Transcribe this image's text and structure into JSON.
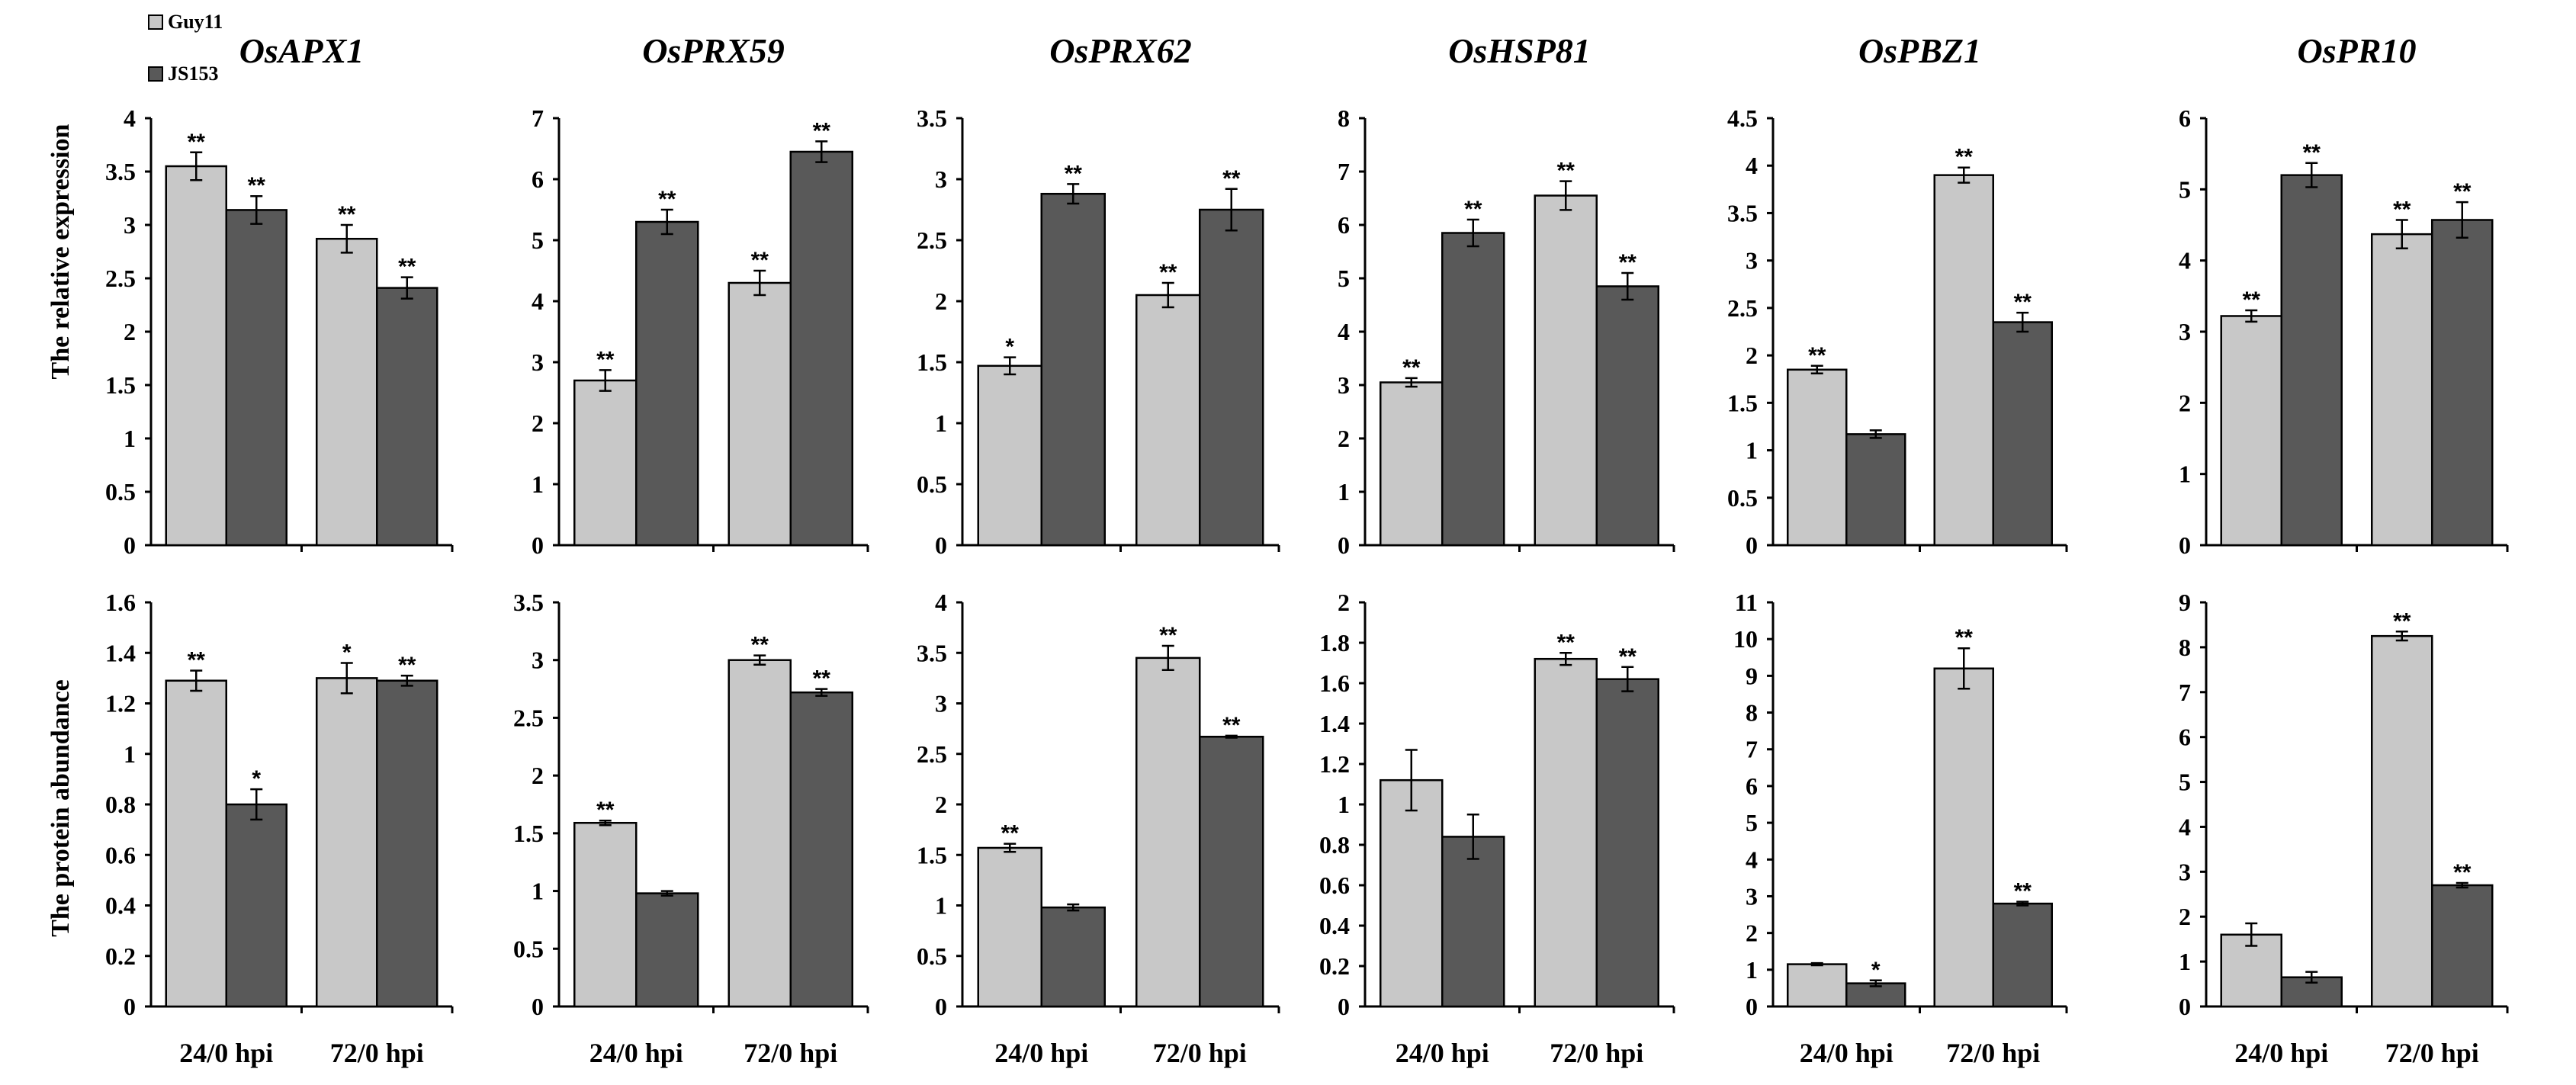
{
  "legend": {
    "items": [
      {
        "label": "Guy11",
        "color": "#c8c8c8"
      },
      {
        "label": "JS153",
        "color": "#595959"
      }
    ]
  },
  "row_labels": {
    "top": "The relative expression",
    "bottom": "The protein  abundance"
  },
  "chart_data": [
    {
      "type": "bar",
      "title": "OsAPX1",
      "ylabel": "The relative expression",
      "categories": [
        "24/0 hpi",
        "72/0 hpi"
      ],
      "ylim": [
        0,
        4
      ],
      "ytick_labels": [
        "0",
        "0.5",
        "1",
        "1.5",
        "2",
        "2.5",
        "3",
        "3.5",
        "4"
      ],
      "series": [
        {
          "name": "Guy11",
          "values": [
            3.55,
            2.87
          ],
          "errors": [
            0.13,
            0.13
          ],
          "marks": [
            "**",
            "**"
          ]
        },
        {
          "name": "JS153",
          "values": [
            3.14,
            2.41
          ],
          "errors": [
            0.13,
            0.1
          ],
          "marks": [
            "**",
            "**"
          ]
        }
      ]
    },
    {
      "type": "bar",
      "title": "OsPRX59",
      "ylabel": "",
      "categories": [
        "24/0 hpi",
        "72/0 hpi"
      ],
      "ylim": [
        0,
        7
      ],
      "ytick_labels": [
        "0",
        "1",
        "2",
        "3",
        "4",
        "5",
        "6",
        "7"
      ],
      "series": [
        {
          "name": "Guy11",
          "values": [
            2.7,
            4.3
          ],
          "errors": [
            0.17,
            0.2
          ],
          "marks": [
            "**",
            "**"
          ]
        },
        {
          "name": "JS153",
          "values": [
            5.3,
            6.45
          ],
          "errors": [
            0.2,
            0.17
          ],
          "marks": [
            "**",
            "**"
          ]
        }
      ]
    },
    {
      "type": "bar",
      "title": "OsPRX62",
      "ylabel": "",
      "categories": [
        "24/0 hpi",
        "72/0 hpi"
      ],
      "ylim": [
        0,
        3.5
      ],
      "ytick_labels": [
        "0",
        "0.5",
        "1",
        "1.5",
        "2",
        "2.5",
        "3",
        "3.5"
      ],
      "series": [
        {
          "name": "Guy11",
          "values": [
            1.47,
            2.05
          ],
          "errors": [
            0.07,
            0.1
          ],
          "marks": [
            "*",
            "**"
          ]
        },
        {
          "name": "JS153",
          "values": [
            2.88,
            2.75
          ],
          "errors": [
            0.08,
            0.17
          ],
          "marks": [
            "**",
            "**"
          ]
        }
      ]
    },
    {
      "type": "bar",
      "title": "OsHSP81",
      "ylabel": "",
      "categories": [
        "24/0 hpi",
        "72/0 hpi"
      ],
      "ylim": [
        0,
        8
      ],
      "ytick_labels": [
        "0",
        "1",
        "2",
        "3",
        "4",
        "5",
        "6",
        "7",
        "8"
      ],
      "series": [
        {
          "name": "Guy11",
          "values": [
            3.05,
            6.55
          ],
          "errors": [
            0.08,
            0.27
          ],
          "marks": [
            "**",
            "**"
          ]
        },
        {
          "name": "JS153",
          "values": [
            5.85,
            4.85
          ],
          "errors": [
            0.25,
            0.25
          ],
          "marks": [
            "**",
            "**"
          ]
        }
      ]
    },
    {
      "type": "bar",
      "title": "OsPBZ1",
      "ylabel": "",
      "categories": [
        "24/0 hpi",
        "72/0 hpi"
      ],
      "ylim": [
        0,
        4.5
      ],
      "ytick_labels": [
        "0",
        "0.5",
        "1",
        "1.5",
        "2",
        "2.5",
        "3",
        "3.5",
        "4",
        "4.5"
      ],
      "series": [
        {
          "name": "Guy11",
          "values": [
            1.85,
            3.9
          ],
          "errors": [
            0.04,
            0.08
          ],
          "marks": [
            "**",
            "**"
          ]
        },
        {
          "name": "JS153",
          "values": [
            1.17,
            2.35
          ],
          "errors": [
            0.04,
            0.1
          ],
          "marks": [
            "",
            "**"
          ]
        }
      ]
    },
    {
      "type": "bar",
      "title": "OsPR10",
      "ylabel": "",
      "categories": [
        "24/0 hpi",
        "72/0 hpi"
      ],
      "ylim": [
        0,
        6
      ],
      "ytick_labels": [
        "0",
        "1",
        "2",
        "3",
        "4",
        "5",
        "6"
      ],
      "series": [
        {
          "name": "Guy11",
          "values": [
            3.22,
            4.37
          ],
          "errors": [
            0.08,
            0.2
          ],
          "marks": [
            "**",
            "**"
          ]
        },
        {
          "name": "JS153",
          "values": [
            5.2,
            4.57
          ],
          "errors": [
            0.17,
            0.25
          ],
          "marks": [
            "**",
            "**"
          ]
        }
      ]
    },
    {
      "type": "bar",
      "title": "",
      "ylabel": "The protein  abundance",
      "categories": [
        "24/0 hpi",
        "72/0 hpi"
      ],
      "ylim": [
        0,
        1.6
      ],
      "ytick_labels": [
        "0",
        "0.2",
        "0.4",
        "0.6",
        "0.8",
        "1",
        "1.2",
        "1.4",
        "1.6"
      ],
      "series": [
        {
          "name": "Guy11",
          "values": [
            1.29,
            1.3
          ],
          "errors": [
            0.04,
            0.06
          ],
          "marks": [
            "**",
            "*"
          ]
        },
        {
          "name": "JS153",
          "values": [
            0.8,
            1.29
          ],
          "errors": [
            0.06,
            0.02
          ],
          "marks": [
            "*",
            "**"
          ]
        }
      ]
    },
    {
      "type": "bar",
      "title": "",
      "ylabel": "",
      "categories": [
        "24/0 hpi",
        "72/0 hpi"
      ],
      "ylim": [
        0,
        3.5
      ],
      "ytick_labels": [
        "0",
        "0.5",
        "1",
        "1.5",
        "2",
        "2.5",
        "3",
        "3.5"
      ],
      "series": [
        {
          "name": "Guy11",
          "values": [
            1.59,
            3.0
          ],
          "errors": [
            0.02,
            0.04
          ],
          "marks": [
            "**",
            "**"
          ]
        },
        {
          "name": "JS153",
          "values": [
            0.98,
            2.72
          ],
          "errors": [
            0.02,
            0.03
          ],
          "marks": [
            "",
            "**"
          ]
        }
      ]
    },
    {
      "type": "bar",
      "title": "",
      "ylabel": "",
      "categories": [
        "24/0 hpi",
        "72/0 hpi"
      ],
      "ylim": [
        0,
        4
      ],
      "ytick_labels": [
        "0",
        "0.5",
        "1",
        "1.5",
        "2",
        "2.5",
        "3",
        "3.5",
        "4"
      ],
      "series": [
        {
          "name": "Guy11",
          "values": [
            1.57,
            3.45
          ],
          "errors": [
            0.04,
            0.12
          ],
          "marks": [
            "**",
            "**"
          ]
        },
        {
          "name": "JS153",
          "values": [
            0.98,
            2.67
          ],
          "errors": [
            0.03,
            0.01
          ],
          "marks": [
            "",
            "**"
          ]
        }
      ]
    },
    {
      "type": "bar",
      "title": "",
      "ylabel": "",
      "categories": [
        "24/0 hpi",
        "72/0 hpi"
      ],
      "ylim": [
        0,
        2
      ],
      "ytick_labels": [
        "0",
        "0.2",
        "0.4",
        "0.6",
        "0.8",
        "1",
        "1.2",
        "1.4",
        "1.6",
        "1.8",
        "2"
      ],
      "series": [
        {
          "name": "Guy11",
          "values": [
            1.12,
            1.72
          ],
          "errors": [
            0.15,
            0.03
          ],
          "marks": [
            "",
            "**"
          ]
        },
        {
          "name": "JS153",
          "values": [
            0.84,
            1.62
          ],
          "errors": [
            0.11,
            0.06
          ],
          "marks": [
            "",
            "**"
          ]
        }
      ]
    },
    {
      "type": "bar",
      "title": "",
      "ylabel": "",
      "categories": [
        "24/0 hpi",
        "72/0 hpi"
      ],
      "ylim": [
        0,
        11
      ],
      "ytick_labels": [
        "0",
        "1",
        "2",
        "3",
        "4",
        "5",
        "6",
        "7",
        "8",
        "9",
        "10",
        "11"
      ],
      "series": [
        {
          "name": "Guy11",
          "values": [
            1.15,
            9.2
          ],
          "errors": [
            0.03,
            0.55
          ],
          "marks": [
            "",
            "**"
          ]
        },
        {
          "name": "JS153",
          "values": [
            0.63,
            2.8
          ],
          "errors": [
            0.08,
            0.05
          ],
          "marks": [
            "*",
            "**"
          ]
        }
      ]
    },
    {
      "type": "bar",
      "title": "",
      "ylabel": "",
      "categories": [
        "24/0 hpi",
        "72/0 hpi"
      ],
      "ylim": [
        0,
        9
      ],
      "ytick_labels": [
        "0",
        "1",
        "2",
        "3",
        "4",
        "5",
        "6",
        "7",
        "8",
        "9"
      ],
      "series": [
        {
          "name": "Guy11",
          "values": [
            1.6,
            8.25
          ],
          "errors": [
            0.25,
            0.1
          ],
          "marks": [
            "",
            "**"
          ]
        },
        {
          "name": "JS153",
          "values": [
            0.65,
            2.7
          ],
          "errors": [
            0.12,
            0.05
          ],
          "marks": [
            "",
            "**"
          ]
        }
      ]
    }
  ]
}
